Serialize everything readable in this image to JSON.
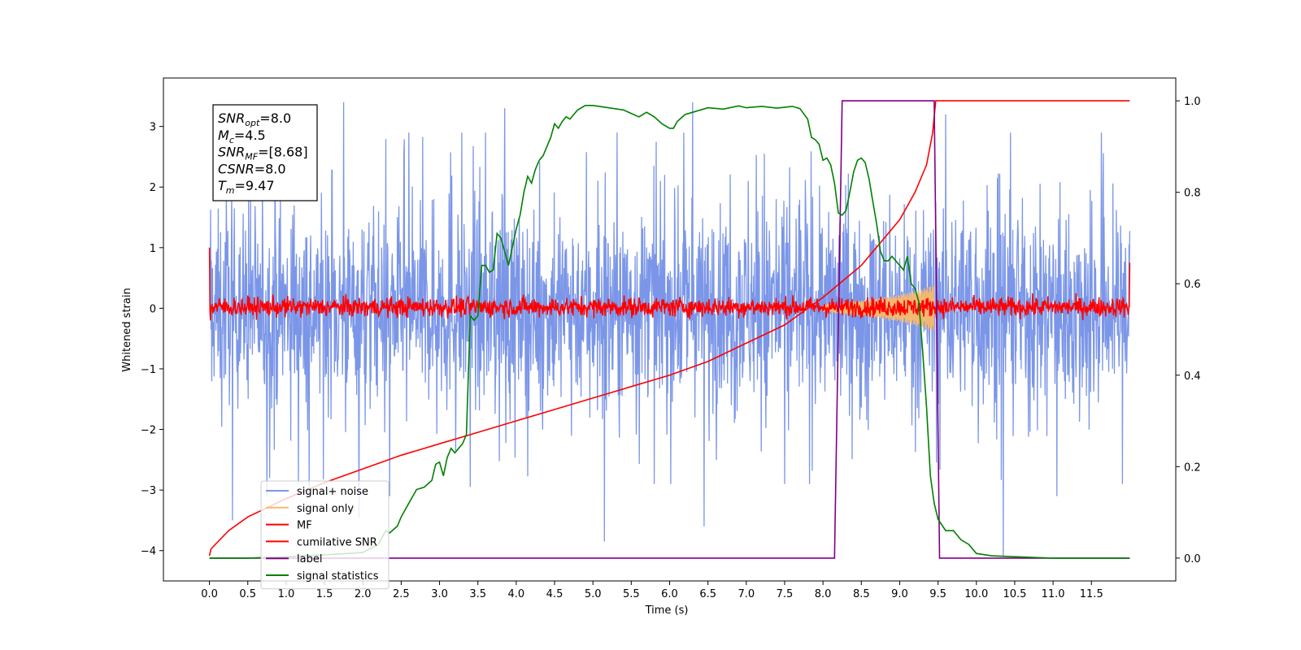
{
  "chart_data": {
    "type": "line",
    "title": "",
    "xlabel": "Time (s)",
    "ylabel": "Whitened strain",
    "y2label": "",
    "xlim": [
      -0.6,
      12.6
    ],
    "ylim": [
      -4.5,
      3.8
    ],
    "y2lim": [
      -0.05,
      1.05
    ],
    "xticks": [
      "0.0",
      "0.5",
      "1.0",
      "1.5",
      "2.0",
      "2.5",
      "3.0",
      "3.5",
      "4.0",
      "4.5",
      "5.0",
      "5.5",
      "6.0",
      "6.5",
      "7.0",
      "7.5",
      "8.0",
      "8.5",
      "9.0",
      "9.5",
      "10.0",
      "10.5",
      "11.0",
      "11.5"
    ],
    "yticks": [
      "3",
      "2",
      "1",
      "0",
      "−1",
      "−2",
      "−3",
      "−4"
    ],
    "y2ticks": [
      "1.0",
      "0.8",
      "0.6",
      "0.4",
      "0.2",
      "0.0"
    ],
    "grid": false,
    "legend_position": "lower-left",
    "info_box": {
      "lines": [
        {
          "main": "SNR",
          "sub": "opt",
          "value": "=8.0"
        },
        {
          "main": "M",
          "sub": "c",
          "value": "=4.5"
        },
        {
          "main": "SNR",
          "sub": "MF",
          "value": "=[8.68]"
        },
        {
          "main": "CSNR",
          "sub": "",
          "value": "=8.0"
        },
        {
          "main": "T",
          "sub": "m",
          "value": "=9.47"
        }
      ]
    },
    "series": [
      {
        "name": "signal+ noise",
        "color": "#7b96e8",
        "axis": "left",
        "style": "noise",
        "x_range": [
          0.0,
          12.0
        ],
        "band": [
          -1.7,
          1.7
        ],
        "spikes": [
          [
            0.3,
            -3.5
          ],
          [
            0.75,
            -3.1
          ],
          [
            1.3,
            -3.1
          ],
          [
            1.75,
            3.4
          ],
          [
            1.95,
            -3.45
          ],
          [
            2.35,
            -3.1
          ],
          [
            3.4,
            -2.95
          ],
          [
            5.15,
            -3.85
          ],
          [
            6.45,
            -3.6
          ],
          [
            7.5,
            -2.9
          ],
          [
            10.35,
            -4.1
          ],
          [
            3.85,
            3.3
          ],
          [
            6.3,
            3.4
          ],
          [
            9.6,
            3.2
          ],
          [
            11.05,
            -3.1
          ]
        ]
      },
      {
        "name": "signal only",
        "color": "#f5b870",
        "axis": "left",
        "style": "chirp",
        "x": [
          8.0,
          8.3,
          8.6,
          8.9,
          9.1,
          9.3,
          9.45
        ],
        "amplitude": [
          0.06,
          0.1,
          0.14,
          0.2,
          0.25,
          0.32,
          0.4
        ]
      },
      {
        "name": "MF",
        "color": "#ff0000",
        "axis": "left",
        "style": "mf-noise",
        "x_range": [
          0.0,
          12.0
        ],
        "band": [
          -0.15,
          0.2
        ],
        "spikes": [
          [
            0.0,
            1.0
          ],
          [
            0.01,
            -0.2
          ],
          [
            12.0,
            0.75
          ]
        ]
      },
      {
        "name": "cumilative SNR",
        "color": "#ff0000",
        "axis": "right",
        "x": [
          0.0,
          0.02,
          0.25,
          0.5,
          1.0,
          1.5,
          2.0,
          2.5,
          3.0,
          3.5,
          4.0,
          4.5,
          5.0,
          5.5,
          6.0,
          6.5,
          7.0,
          7.5,
          8.0,
          8.5,
          9.0,
          9.2,
          9.35,
          9.43,
          9.47,
          9.5,
          10.0,
          11.0,
          12.0
        ],
        "y": [
          0.005,
          0.02,
          0.06,
          0.09,
          0.13,
          0.165,
          0.195,
          0.225,
          0.25,
          0.275,
          0.3,
          0.325,
          0.35,
          0.375,
          0.4,
          0.43,
          0.47,
          0.51,
          0.57,
          0.64,
          0.74,
          0.8,
          0.86,
          0.93,
          1.0,
          1.0,
          1.0,
          1.0,
          1.0
        ]
      },
      {
        "name": "label",
        "color": "#800080",
        "axis": "right",
        "x": [
          0.0,
          8.15,
          8.25,
          9.45,
          9.52,
          12.0
        ],
        "y": [
          0.0,
          0.0,
          1.0,
          1.0,
          0.0,
          0.0
        ]
      },
      {
        "name": "signal statistics",
        "color": "#008000",
        "axis": "right",
        "x": [
          0.0,
          0.5,
          1.0,
          1.5,
          2.0,
          2.2,
          2.3,
          2.35,
          2.45,
          2.5,
          2.6,
          2.7,
          2.8,
          2.9,
          2.95,
          3.0,
          3.05,
          3.1,
          3.15,
          3.2,
          3.3,
          3.35,
          3.4,
          3.45,
          3.5,
          3.55,
          3.6,
          3.65,
          3.7,
          3.75,
          3.8,
          3.85,
          3.9,
          3.95,
          4.0,
          4.05,
          4.1,
          4.15,
          4.2,
          4.25,
          4.3,
          4.35,
          4.4,
          4.45,
          4.5,
          4.55,
          4.6,
          4.65,
          4.7,
          4.8,
          4.9,
          5.0,
          5.2,
          5.4,
          5.6,
          5.7,
          5.8,
          5.9,
          6.0,
          6.05,
          6.1,
          6.2,
          6.3,
          6.5,
          6.7,
          6.9,
          7.0,
          7.2,
          7.4,
          7.6,
          7.7,
          7.8,
          7.85,
          7.9,
          7.95,
          8.0,
          8.05,
          8.1,
          8.15,
          8.2,
          8.25,
          8.3,
          8.35,
          8.4,
          8.45,
          8.5,
          8.55,
          8.6,
          8.65,
          8.7,
          8.75,
          8.8,
          8.85,
          8.9,
          8.95,
          9.0,
          9.05,
          9.1,
          9.15,
          9.2,
          9.25,
          9.3,
          9.35,
          9.4,
          9.45,
          9.5,
          9.6,
          9.7,
          9.8,
          9.9,
          10.0,
          10.2,
          10.5,
          11.0,
          12.0
        ],
        "y": [
          0.0,
          0.0,
          0.003,
          0.007,
          0.012,
          0.03,
          0.06,
          0.055,
          0.07,
          0.09,
          0.12,
          0.15,
          0.155,
          0.17,
          0.205,
          0.21,
          0.18,
          0.22,
          0.24,
          0.23,
          0.25,
          0.27,
          0.53,
          0.52,
          0.53,
          0.64,
          0.64,
          0.625,
          0.63,
          0.71,
          0.7,
          0.67,
          0.64,
          0.68,
          0.72,
          0.75,
          0.8,
          0.835,
          0.82,
          0.85,
          0.87,
          0.88,
          0.9,
          0.92,
          0.95,
          0.94,
          0.955,
          0.965,
          0.96,
          0.98,
          0.99,
          0.99,
          0.985,
          0.98,
          0.965,
          0.975,
          0.965,
          0.95,
          0.94,
          0.94,
          0.955,
          0.97,
          0.975,
          0.985,
          0.982,
          0.989,
          0.985,
          0.988,
          0.984,
          0.988,
          0.983,
          0.96,
          0.92,
          0.915,
          0.905,
          0.87,
          0.875,
          0.86,
          0.82,
          0.755,
          0.75,
          0.76,
          0.8,
          0.845,
          0.87,
          0.875,
          0.865,
          0.83,
          0.78,
          0.73,
          0.67,
          0.65,
          0.65,
          0.66,
          0.65,
          0.64,
          0.63,
          0.66,
          0.6,
          0.59,
          0.56,
          0.45,
          0.33,
          0.18,
          0.12,
          0.085,
          0.06,
          0.06,
          0.04,
          0.03,
          0.01,
          0.005,
          0.003,
          0.0,
          0.0
        ]
      }
    ]
  }
}
